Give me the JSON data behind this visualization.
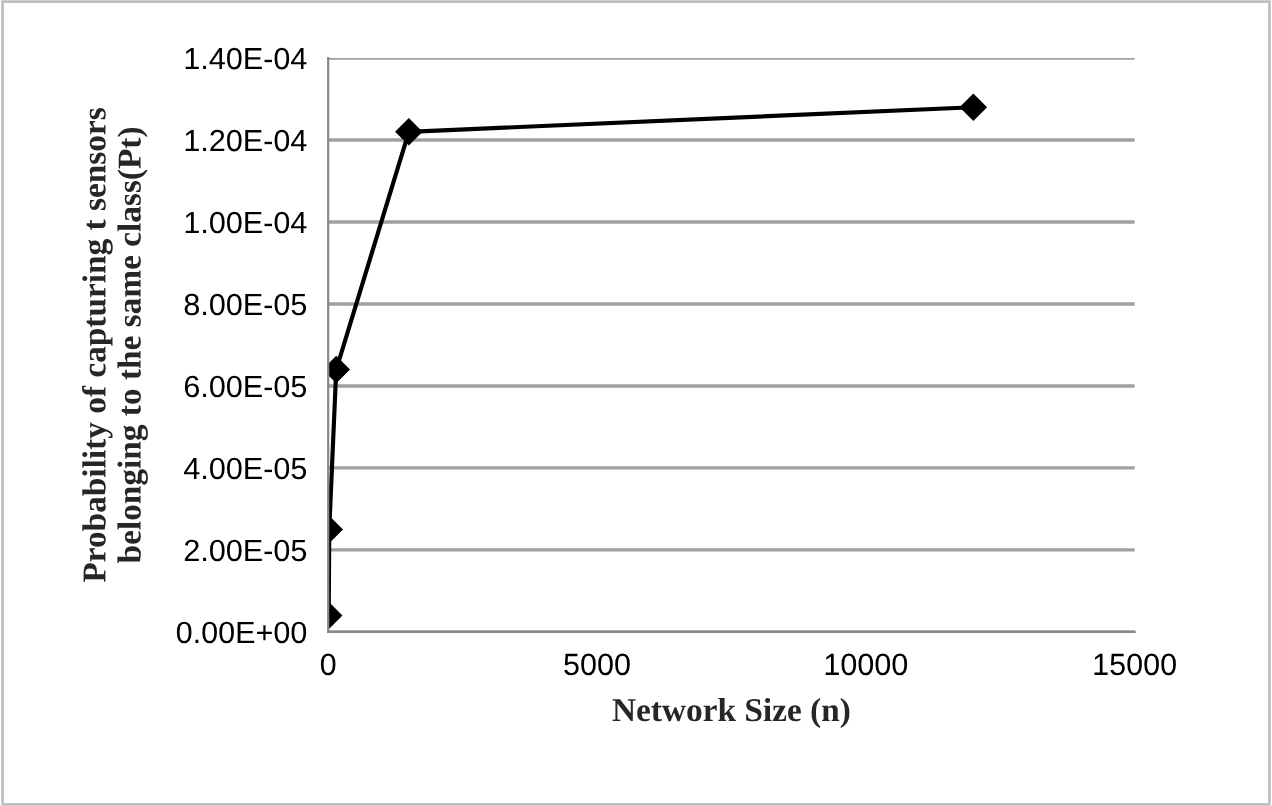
{
  "chart_data": {
    "type": "line",
    "xlabel": "Network Size (n)",
    "ylabel": "Probability of capturing t sensors\nbelonging to the same class(Pt)",
    "x": [
      10,
      20,
      150,
      1500,
      12000
    ],
    "series": [
      {
        "color": "#000000",
        "values": [
          4e-06,
          2.5e-05,
          6.4e-05,
          0.000122,
          0.000128
        ]
      }
    ],
    "xlim": [
      0,
      15000
    ],
    "xticks": [
      0,
      5000,
      10000,
      15000
    ],
    "ylim": [
      0,
      0.00014
    ],
    "yticks": [
      {
        "value": 0,
        "label": "0.00E+00"
      },
      {
        "value": 2e-05,
        "label": "2.00E-05"
      },
      {
        "value": 4e-05,
        "label": "4.00E-05"
      },
      {
        "value": 6e-05,
        "label": "6.00E-05"
      },
      {
        "value": 8e-05,
        "label": "8.00E-05"
      },
      {
        "value": 0.0001,
        "label": "1.00E-04"
      },
      {
        "value": 0.00012,
        "label": "1.20E-04"
      },
      {
        "value": 0.00014,
        "label": "1.40E-04"
      }
    ],
    "grid": "y",
    "legend": false,
    "marker": "diamond",
    "line_style": "solid"
  }
}
